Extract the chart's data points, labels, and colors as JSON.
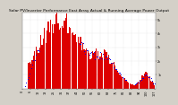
{
  "title": "Solar PV/Inverter Performance East Array Actual & Running Average Power Output",
  "bg_color": "#d4d0c8",
  "plot_bg_color": "#ffffff",
  "bar_color": "#dd0000",
  "dot_color": "#0000ee",
  "grid_color": "#bbbbbb",
  "ylim_max": 5.5,
  "title_fontsize": 3.2,
  "tick_fontsize": 2.4,
  "ytick_labels": [
    "1k",
    "2k",
    "3k",
    "4k",
    "5k"
  ],
  "ytick_values": [
    1.0,
    2.0,
    3.0,
    4.0,
    5.0
  ]
}
